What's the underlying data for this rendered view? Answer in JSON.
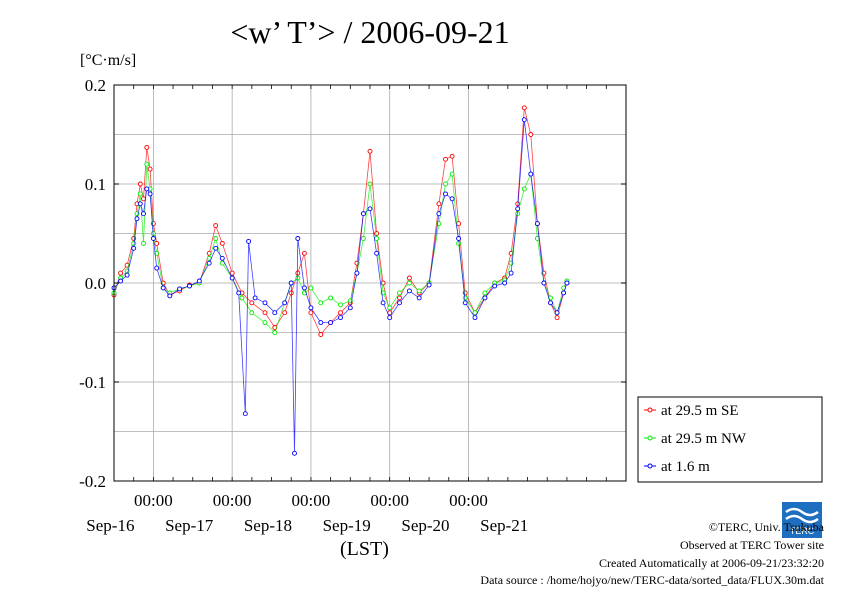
{
  "title": "<w’ T’> / 2006-09-21",
  "unit_label": "[°C·m/s]",
  "x_axis_title": "(LST)",
  "credits": {
    "copyright": "©TERC, Univ. Tsukuba",
    "site": "Observed at TERC Tower site",
    "created": "Created Automatically at 2006-09-21/23:32:20",
    "source": "Data source : /home/hojyo/new/TERC-data/sorted_data/FLUX.30m.dat"
  },
  "logo": {
    "icon": "terc-logo",
    "text": "TERC",
    "color": "#1e6fc0"
  },
  "chart_data": {
    "type": "line",
    "title": "<w’ T’> / 2006-09-21",
    "ylabel": "[°C·m/s]",
    "xlabel": "(LST)",
    "ylim": [
      -0.2,
      0.2
    ],
    "yticks": [
      -0.2,
      -0.1,
      0.0,
      0.1,
      0.2
    ],
    "ytick_labels": [
      "-0.2",
      "-0.1",
      "0.0",
      "0.1",
      "0.2"
    ],
    "xlim": [
      "2006-09-15 12:00",
      "2006-09-21 24:00"
    ],
    "xticks": [
      "2006-09-16 00:00",
      "2006-09-17 00:00",
      "2006-09-18 00:00",
      "2006-09-19 00:00",
      "2006-09-20 00:00"
    ],
    "xtick_labels_time": [
      "00:00",
      "00:00",
      "00:00",
      "00:00",
      "00:00"
    ],
    "date_labels": [
      "Sep-16",
      "Sep-17",
      "Sep-18",
      "Sep-19",
      "Sep-20",
      "Sep-21"
    ],
    "date_label_positions": [
      "2006-09-16 00:00",
      "2006-09-17 00:00",
      "2006-09-18 00:00",
      "2006-09-19 00:00",
      "2006-09-20 00:00",
      "2006-09-21 00:00"
    ],
    "grid": true,
    "legend_position": "bottom-right outside",
    "series": [
      {
        "name": "at 29.5 m SE",
        "color": "#ff0000",
        "points": [
          [
            "2006-09-15 12:00",
            -0.012
          ],
          [
            "2006-09-15 14:00",
            0.01
          ],
          [
            "2006-09-15 16:00",
            0.018
          ],
          [
            "2006-09-15 18:00",
            0.045
          ],
          [
            "2006-09-15 19:00",
            0.08
          ],
          [
            "2006-09-15 20:00",
            0.1
          ],
          [
            "2006-09-15 21:00",
            0.085
          ],
          [
            "2006-09-15 22:00",
            0.137
          ],
          [
            "2006-09-15 23:00",
            0.115
          ],
          [
            "2006-09-16 00:00",
            0.06
          ],
          [
            "2006-09-16 01:00",
            0.04
          ],
          [
            "2006-09-16 03:00",
            0.0
          ],
          [
            "2006-09-16 05:00",
            -0.012
          ],
          [
            "2006-09-16 08:00",
            -0.008
          ],
          [
            "2006-09-16 11:00",
            -0.002
          ],
          [
            "2006-09-16 14:00",
            0.0
          ],
          [
            "2006-09-16 17:00",
            0.03
          ],
          [
            "2006-09-16 19:00",
            0.058
          ],
          [
            "2006-09-16 21:00",
            0.04
          ],
          [
            "2006-09-17 00:00",
            0.01
          ],
          [
            "2006-09-17 03:00",
            -0.01
          ],
          [
            "2006-09-17 06:00",
            -0.02
          ],
          [
            "2006-09-17 10:00",
            -0.03
          ],
          [
            "2006-09-17 13:00",
            -0.045
          ],
          [
            "2006-09-17 16:00",
            -0.03
          ],
          [
            "2006-09-17 18:00",
            -0.01
          ],
          [
            "2006-09-17 20:00",
            0.01
          ],
          [
            "2006-09-17 22:00",
            0.03
          ],
          [
            "2006-09-18 00:00",
            -0.03
          ],
          [
            "2006-09-18 03:00",
            -0.052
          ],
          [
            "2006-09-18 06:00",
            -0.04
          ],
          [
            "2006-09-18 09:00",
            -0.03
          ],
          [
            "2006-09-18 12:00",
            -0.02
          ],
          [
            "2006-09-18 14:00",
            0.02
          ],
          [
            "2006-09-18 16:00",
            0.07
          ],
          [
            "2006-09-18 18:00",
            0.133
          ],
          [
            "2006-09-18 20:00",
            0.05
          ],
          [
            "2006-09-18 22:00",
            0.0
          ],
          [
            "2006-09-19 00:00",
            -0.03
          ],
          [
            "2006-09-19 03:00",
            -0.015
          ],
          [
            "2006-09-19 06:00",
            0.005
          ],
          [
            "2006-09-19 09:00",
            -0.01
          ],
          [
            "2006-09-19 12:00",
            0.0
          ],
          [
            "2006-09-19 15:00",
            0.08
          ],
          [
            "2006-09-19 17:00",
            0.125
          ],
          [
            "2006-09-19 19:00",
            0.128
          ],
          [
            "2006-09-19 21:00",
            0.06
          ],
          [
            "2006-09-19 23:00",
            -0.01
          ],
          [
            "2006-09-20 02:00",
            -0.03
          ],
          [
            "2006-09-20 05:00",
            -0.015
          ],
          [
            "2006-09-20 08:00",
            0.0
          ],
          [
            "2006-09-20 11:00",
            0.005
          ],
          [
            "2006-09-20 13:00",
            0.03
          ],
          [
            "2006-09-20 15:00",
            0.08
          ],
          [
            "2006-09-20 17:00",
            0.177
          ],
          [
            "2006-09-20 19:00",
            0.15
          ],
          [
            "2006-09-20 21:00",
            0.06
          ],
          [
            "2006-09-20 23:00",
            0.01
          ],
          [
            "2006-09-21 01:00",
            -0.02
          ],
          [
            "2006-09-21 03:00",
            -0.035
          ],
          [
            "2006-09-21 05:00",
            -0.01
          ],
          [
            "2006-09-21 06:00",
            0.0
          ]
        ]
      },
      {
        "name": "at 29.5 m NW",
        "color": "#00ee00",
        "points": [
          [
            "2006-09-15 12:00",
            -0.01
          ],
          [
            "2006-09-15 14:00",
            0.005
          ],
          [
            "2006-09-15 16:00",
            0.012
          ],
          [
            "2006-09-15 18:00",
            0.04
          ],
          [
            "2006-09-15 19:00",
            0.07
          ],
          [
            "2006-09-15 20:00",
            0.09
          ],
          [
            "2006-09-15 21:00",
            0.04
          ],
          [
            "2006-09-15 22:00",
            0.12
          ],
          [
            "2006-09-15 23:00",
            0.095
          ],
          [
            "2006-09-16 00:00",
            0.05
          ],
          [
            "2006-09-16 01:00",
            0.03
          ],
          [
            "2006-09-16 03:00",
            -0.005
          ],
          [
            "2006-09-16 05:00",
            -0.01
          ],
          [
            "2006-09-16 08:00",
            -0.006
          ],
          [
            "2006-09-16 11:00",
            -0.003
          ],
          [
            "2006-09-16 14:00",
            0.0
          ],
          [
            "2006-09-16 17:00",
            0.025
          ],
          [
            "2006-09-16 19:00",
            0.045
          ],
          [
            "2006-09-16 21:00",
            0.02
          ],
          [
            "2006-09-17 00:00",
            0.005
          ],
          [
            "2006-09-17 03:00",
            -0.015
          ],
          [
            "2006-09-17 06:00",
            -0.03
          ],
          [
            "2006-09-17 10:00",
            -0.04
          ],
          [
            "2006-09-17 13:00",
            -0.05
          ],
          [
            "2006-09-17 16:00",
            -0.02
          ],
          [
            "2006-09-17 18:00",
            0.0
          ],
          [
            "2006-09-17 20:00",
            0.005
          ],
          [
            "2006-09-17 22:00",
            -0.01
          ],
          [
            "2006-09-18 00:00",
            -0.005
          ],
          [
            "2006-09-18 03:00",
            -0.02
          ],
          [
            "2006-09-18 06:00",
            -0.015
          ],
          [
            "2006-09-18 09:00",
            -0.022
          ],
          [
            "2006-09-18 12:00",
            -0.018
          ],
          [
            "2006-09-18 14:00",
            0.01
          ],
          [
            "2006-09-18 16:00",
            0.045
          ],
          [
            "2006-09-18 18:00",
            0.1
          ],
          [
            "2006-09-18 20:00",
            0.045
          ],
          [
            "2006-09-18 22:00",
            -0.01
          ],
          [
            "2006-09-19 00:00",
            -0.025
          ],
          [
            "2006-09-19 03:00",
            -0.01
          ],
          [
            "2006-09-19 06:00",
            0.0
          ],
          [
            "2006-09-19 09:00",
            -0.008
          ],
          [
            "2006-09-19 12:00",
            0.0
          ],
          [
            "2006-09-19 15:00",
            0.06
          ],
          [
            "2006-09-19 17:00",
            0.1
          ],
          [
            "2006-09-19 19:00",
            0.11
          ],
          [
            "2006-09-19 21:00",
            0.04
          ],
          [
            "2006-09-19 23:00",
            -0.015
          ],
          [
            "2006-09-20 02:00",
            -0.03
          ],
          [
            "2006-09-20 05:00",
            -0.01
          ],
          [
            "2006-09-20 08:00",
            0.0
          ],
          [
            "2006-09-20 11:00",
            0.003
          ],
          [
            "2006-09-20 13:00",
            0.02
          ],
          [
            "2006-09-20 15:00",
            0.07
          ],
          [
            "2006-09-20 17:00",
            0.095
          ],
          [
            "2006-09-20 19:00",
            0.11
          ],
          [
            "2006-09-20 21:00",
            0.045
          ],
          [
            "2006-09-20 23:00",
            0.0
          ],
          [
            "2006-09-21 01:00",
            -0.015
          ],
          [
            "2006-09-21 03:00",
            -0.03
          ],
          [
            "2006-09-21 05:00",
            -0.005
          ],
          [
            "2006-09-21 06:00",
            0.002
          ]
        ]
      },
      {
        "name": "at 1.6 m",
        "color": "#0000ff",
        "points": [
          [
            "2006-09-15 12:00",
            -0.005
          ],
          [
            "2006-09-15 14:00",
            0.002
          ],
          [
            "2006-09-15 16:00",
            0.008
          ],
          [
            "2006-09-15 18:00",
            0.035
          ],
          [
            "2006-09-15 19:00",
            0.065
          ],
          [
            "2006-09-15 20:00",
            0.08
          ],
          [
            "2006-09-15 21:00",
            0.07
          ],
          [
            "2006-09-15 22:00",
            0.095
          ],
          [
            "2006-09-15 23:00",
            0.09
          ],
          [
            "2006-09-16 00:00",
            0.045
          ],
          [
            "2006-09-16 01:00",
            0.015
          ],
          [
            "2006-09-16 03:00",
            -0.005
          ],
          [
            "2006-09-16 05:00",
            -0.013
          ],
          [
            "2006-09-16 08:00",
            -0.006
          ],
          [
            "2006-09-16 11:00",
            -0.003
          ],
          [
            "2006-09-16 14:00",
            0.002
          ],
          [
            "2006-09-16 17:00",
            0.02
          ],
          [
            "2006-09-16 19:00",
            0.035
          ],
          [
            "2006-09-16 21:00",
            0.025
          ],
          [
            "2006-09-17 00:00",
            0.005
          ],
          [
            "2006-09-17 02:00",
            -0.01
          ],
          [
            "2006-09-17 04:00",
            -0.132
          ],
          [
            "2006-09-17 05:00",
            0.042
          ],
          [
            "2006-09-17 07:00",
            -0.015
          ],
          [
            "2006-09-17 10:00",
            -0.02
          ],
          [
            "2006-09-17 13:00",
            -0.03
          ],
          [
            "2006-09-17 16:00",
            -0.02
          ],
          [
            "2006-09-17 18:00",
            0.0
          ],
          [
            "2006-09-17 19:00",
            -0.172
          ],
          [
            "2006-09-17 20:00",
            0.045
          ],
          [
            "2006-09-17 22:00",
            -0.005
          ],
          [
            "2006-09-18 00:00",
            -0.025
          ],
          [
            "2006-09-18 03:00",
            -0.04
          ],
          [
            "2006-09-18 06:00",
            -0.04
          ],
          [
            "2006-09-18 09:00",
            -0.035
          ],
          [
            "2006-09-18 12:00",
            -0.025
          ],
          [
            "2006-09-18 14:00",
            0.01
          ],
          [
            "2006-09-18 16:00",
            0.07
          ],
          [
            "2006-09-18 18:00",
            0.075
          ],
          [
            "2006-09-18 20:00",
            0.03
          ],
          [
            "2006-09-18 22:00",
            -0.02
          ],
          [
            "2006-09-19 00:00",
            -0.035
          ],
          [
            "2006-09-19 03:00",
            -0.02
          ],
          [
            "2006-09-19 06:00",
            -0.008
          ],
          [
            "2006-09-19 09:00",
            -0.015
          ],
          [
            "2006-09-19 12:00",
            -0.002
          ],
          [
            "2006-09-19 15:00",
            0.07
          ],
          [
            "2006-09-19 17:00",
            0.09
          ],
          [
            "2006-09-19 19:00",
            0.085
          ],
          [
            "2006-09-19 21:00",
            0.045
          ],
          [
            "2006-09-19 23:00",
            -0.02
          ],
          [
            "2006-09-20 02:00",
            -0.035
          ],
          [
            "2006-09-20 05:00",
            -0.015
          ],
          [
            "2006-09-20 08:00",
            -0.003
          ],
          [
            "2006-09-20 11:00",
            0.0
          ],
          [
            "2006-09-20 13:00",
            0.01
          ],
          [
            "2006-09-20 15:00",
            0.075
          ],
          [
            "2006-09-20 17:00",
            0.165
          ],
          [
            "2006-09-20 19:00",
            0.11
          ],
          [
            "2006-09-20 21:00",
            0.06
          ],
          [
            "2006-09-20 23:00",
            0.0
          ],
          [
            "2006-09-21 01:00",
            -0.02
          ],
          [
            "2006-09-21 03:00",
            -0.03
          ],
          [
            "2006-09-21 05:00",
            -0.01
          ],
          [
            "2006-09-21 06:00",
            0.0
          ]
        ]
      }
    ]
  }
}
